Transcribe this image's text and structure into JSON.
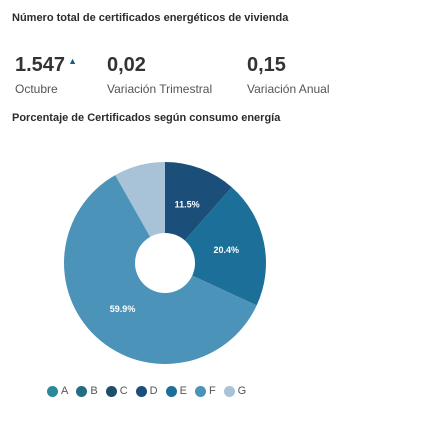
{
  "section1_title": "Número total de certificados energéticos de vivienda",
  "kpis": [
    {
      "value": "1.547",
      "label": "Octubre",
      "trend": "up"
    },
    {
      "value": "0,02",
      "label": "Variación Trimestral"
    },
    {
      "value": "0,15",
      "label": "Variación Anual"
    }
  ],
  "trend_icon": "arrow-up-icon",
  "chart_data": {
    "type": "pie",
    "title": "Porcentaje de Certificados según consumo energía",
    "donut": true,
    "slices": [
      {
        "category": "D",
        "value": 11.5,
        "label": "11.5%",
        "color": "#1b4f7a"
      },
      {
        "category": "E",
        "value": 20.4,
        "label": "20.4%",
        "color": "#1c6f98"
      },
      {
        "category": "F",
        "value": 59.9,
        "label": "59.9%",
        "color": "#4b93b8"
      },
      {
        "category": "G",
        "value": 8.2,
        "label": "",
        "color": "#a8c3d8"
      }
    ],
    "legend": {
      "placement": "bottom",
      "items": [
        {
          "label": "A",
          "color": "#2b8a99"
        },
        {
          "label": "B",
          "color": "#226d84"
        },
        {
          "label": "C",
          "color": "#1e4d72"
        },
        {
          "label": "D",
          "color": "#1b4f7a"
        },
        {
          "label": "E",
          "color": "#1c6f98"
        },
        {
          "label": "F",
          "color": "#4b93b8"
        },
        {
          "label": "G",
          "color": "#a8c3d8"
        }
      ]
    }
  }
}
